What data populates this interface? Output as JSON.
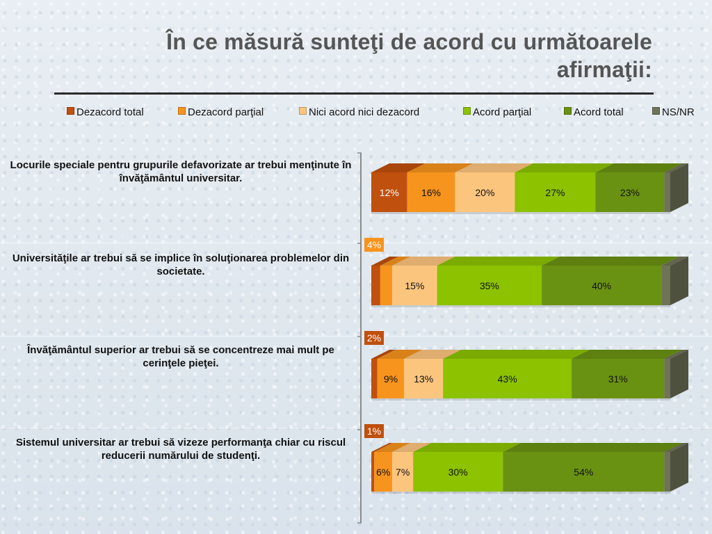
{
  "title_line1": "În ce măsură sunteţi de acord cu următoarele",
  "title_line2": "afirmaţii:",
  "chart_data": {
    "type": "bar",
    "orientation": "horizontal",
    "stacked": true,
    "style": "3d",
    "xlim": [
      0,
      100
    ],
    "legend_position": "top",
    "categories": [
      "Locurile speciale pentru grupurile defavorizate ar trebui menţinute în învăţământul universitar.",
      "Universităţile ar trebui să se implice în soluţionarea problemelor din societate.",
      "Învăţământul superior ar trebui să se concentreze mai mult pe cerinţele pieţei.",
      "Sistemul universitar ar trebui să vizeze performanţa chiar cu riscul reducerii numărului de studenţi."
    ],
    "series": [
      {
        "name": "Dezacord total",
        "color": "#c0500e",
        "values": [
          12,
          3,
          2,
          1
        ]
      },
      {
        "name": "Dezacord parţial",
        "color": "#f7941d",
        "values": [
          16,
          4,
          9,
          6
        ]
      },
      {
        "name": "Nici acord nici dezacord",
        "color": "#fcc57e",
        "values": [
          20,
          15,
          13,
          7
        ]
      },
      {
        "name": "Acord parţial",
        "color": "#8cc200",
        "values": [
          27,
          35,
          43,
          30
        ]
      },
      {
        "name": "Acord total",
        "color": "#6a9212",
        "values": [
          23,
          40,
          31,
          54
        ]
      },
      {
        "name": "NS/NR",
        "color": "#6f7358",
        "values": [
          2,
          3,
          2,
          2
        ]
      }
    ],
    "labeled_series": [
      0,
      1,
      2,
      3,
      4
    ],
    "outside_label_min": 5
  }
}
